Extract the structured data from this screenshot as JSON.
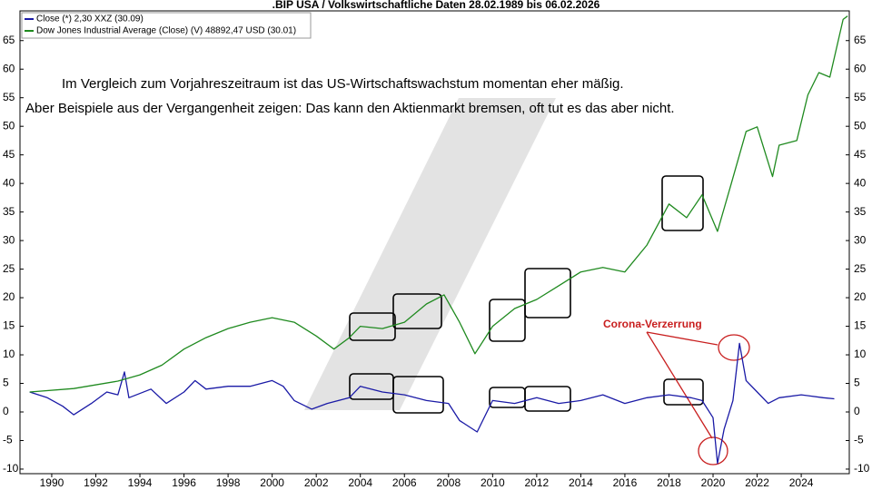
{
  "chart_data": {
    "type": "line",
    "title": ".BIP USA / Volkswirtschaftliche Daten 28.02.1989 bis 06.02.2026",
    "annotations": [
      "Im Vergleich zum Vorjahreszeitraum ist das US-Wirtschaftswachstum momentan eher mäßig.",
      "Aber Beispiele aus der Vergangenheit zeigen: Das kann den Aktienmarkt bremsen, oft tut es das aber nicht.",
      "Corona-Verzerrung"
    ],
    "xlim": [
      1988.56,
      2026.18
    ],
    "xticks": [
      1990,
      1992,
      1994,
      1996,
      1998,
      2000,
      2002,
      2004,
      2006,
      2008,
      2010,
      2012,
      2014,
      2016,
      2018,
      2020,
      2022,
      2024
    ],
    "ylim": [
      -10.8,
      70.2
    ],
    "yticks": [
      -10,
      -5,
      0,
      5,
      10,
      15,
      20,
      25,
      30,
      35,
      40,
      45,
      50,
      55,
      60,
      65
    ],
    "y2lim": [
      -10.8,
      70.2
    ],
    "y2ticks": [
      -10,
      -5,
      0,
      5,
      10,
      15,
      20,
      25,
      30,
      35,
      40,
      45,
      50,
      55,
      60,
      65
    ],
    "legend": "upper left",
    "series": [
      {
        "name": "Close (*) 2,30 XXZ (30.09)",
        "color": "#1a1aa6",
        "x": [
          1989,
          1989.8,
          1990.5,
          1991,
          1991.8,
          1992.5,
          1993,
          1993.3,
          1993.5,
          1994.5,
          1995.2,
          1996,
          1996.5,
          1997,
          1998,
          1999,
          2000,
          2000.5,
          2001,
          2001.8,
          2002.5,
          2003.5,
          2004,
          2005,
          2006,
          2007,
          2008,
          2008.5,
          2009.3,
          2010,
          2011,
          2012,
          2013,
          2014,
          2015,
          2016,
          2017,
          2018,
          2019,
          2019.5,
          2020,
          2020.2,
          2020.5,
          2020.9,
          2021.2,
          2021.5,
          2022,
          2022.5,
          2023,
          2024,
          2025,
          2025.5
        ],
        "values": [
          3.5,
          2.5,
          1.0,
          -0.5,
          1.5,
          3.5,
          3.0,
          7.0,
          2.5,
          4.0,
          1.5,
          3.5,
          5.5,
          4.0,
          4.5,
          4.5,
          5.5,
          4.5,
          2.0,
          0.5,
          1.5,
          2.5,
          4.5,
          3.5,
          3.0,
          2.0,
          1.5,
          -1.5,
          -3.5,
          2.0,
          1.5,
          2.5,
          1.5,
          2.0,
          3.0,
          1.5,
          2.5,
          3.0,
          2.5,
          2.0,
          -1.0,
          -9.0,
          -3.0,
          2.0,
          12.0,
          5.5,
          3.5,
          1.5,
          2.5,
          3.0,
          2.5,
          2.3
        ]
      },
      {
        "name": "Dow Jones Industrial Average (Close) (V) 48892,47 USD (30.01)",
        "color": "#1f8a1f",
        "x": [
          1989,
          1991,
          1993,
          1994,
          1995,
          1996,
          1997,
          1998,
          1999,
          2000,
          2001,
          2002,
          2002.8,
          2003.5,
          2004,
          2005,
          2006,
          2007,
          2007.8,
          2008.5,
          2009.2,
          2010,
          2011,
          2012,
          2013,
          2014,
          2015,
          2016,
          2017,
          2018,
          2018.8,
          2019.5,
          2020.2,
          2020.8,
          2021.5,
          2022,
          2022.7,
          2023,
          2023.8,
          2024.3,
          2024.8,
          2025.3,
          2025.9,
          2026.1
        ],
        "values": [
          3.5,
          4.1,
          5.4,
          6.5,
          8.2,
          11.0,
          13.0,
          14.6,
          15.7,
          16.5,
          15.7,
          13.3,
          11.0,
          13.0,
          15.0,
          14.6,
          15.7,
          18.9,
          20.5,
          15.7,
          10.2,
          15.0,
          18.1,
          19.7,
          22.1,
          24.5,
          25.3,
          24.5,
          29.2,
          36.4,
          34.0,
          38.0,
          31.6,
          39.6,
          49.1,
          49.9,
          41.2,
          46.7,
          47.5,
          55.5,
          59.4,
          58.6,
          68.7,
          69.3
        ]
      }
    ]
  }
}
